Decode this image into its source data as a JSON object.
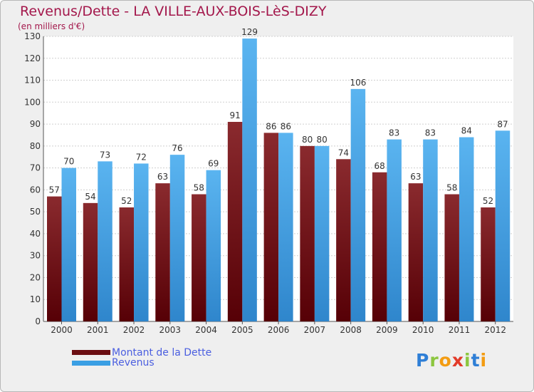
{
  "chart_data": {
    "type": "bar",
    "title": "Revenus/Dette - LA VILLE-AUX-BOIS-LèS-DIZY",
    "subtitle": "(en milliers d'€)",
    "xlabel": "",
    "ylabel": "",
    "ylim": [
      0,
      130
    ],
    "yticks": [
      0,
      10,
      20,
      30,
      40,
      50,
      60,
      70,
      80,
      90,
      100,
      110,
      120,
      130
    ],
    "grid": true,
    "legend_position": "bottom-left",
    "categories": [
      "2000",
      "2001",
      "2002",
      "2003",
      "2004",
      "2005",
      "2006",
      "2007",
      "2008",
      "2009",
      "2010",
      "2011",
      "2012"
    ],
    "series": [
      {
        "name": "Montant de la Dette",
        "color": "#6b0e12",
        "values": [
          57,
          54,
          52,
          63,
          58,
          91,
          86,
          80,
          74,
          68,
          63,
          58,
          52
        ]
      },
      {
        "name": "Revenus",
        "color": "#3a9fe4",
        "values": [
          70,
          73,
          72,
          76,
          69,
          129,
          86,
          80,
          106,
          83,
          83,
          84,
          87
        ]
      }
    ]
  },
  "logo": {
    "letters": [
      "P",
      "r",
      "o",
      "x",
      "i",
      "t",
      "i"
    ],
    "colors": [
      "#2f7fd6",
      "#8cc63f",
      "#f39c12",
      "#e23b2a",
      "#8cc63f",
      "#2f7fd6",
      "#f39c12"
    ]
  }
}
